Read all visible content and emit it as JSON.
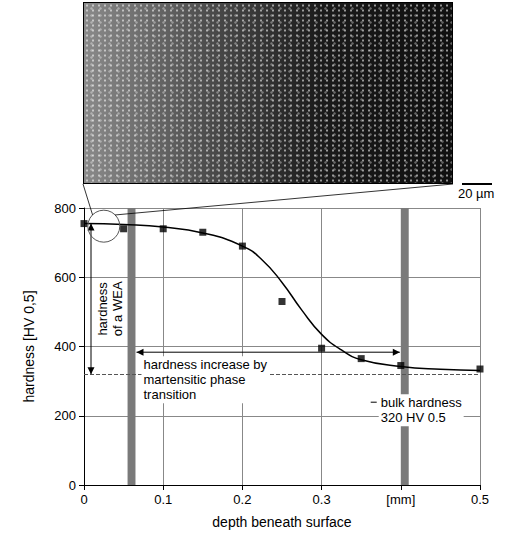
{
  "chart_data": {
    "type": "line",
    "image": {
      "scale_bar": "20 µm"
    },
    "xlabel": "depth beneath surface",
    "ylabel": "hardness [HV 0,5]",
    "xlim": [
      0,
      0.5
    ],
    "xticks": [
      0,
      0.1,
      0.2,
      0.3,
      {
        "value": 0.4,
        "label": "[mm]"
      },
      0.5
    ],
    "ylim": [
      0,
      800
    ],
    "yticks": [
      0,
      200,
      400,
      600,
      800
    ],
    "grid": true,
    "series": [
      {
        "type": "scatter",
        "marker": "square",
        "color": "#000000",
        "x": [
          0,
          0.05,
          0.1,
          0.15,
          0.2,
          0.25,
          0.3,
          0.35,
          0.4,
          0.5
        ],
        "values": [
          755,
          740,
          740,
          730,
          690,
          530,
          395,
          365,
          345,
          335
        ]
      },
      {
        "type": "line",
        "line_style": "solid",
        "color": "#000000",
        "x": [
          0,
          0.05,
          0.1,
          0.15,
          0.2,
          0.225,
          0.25,
          0.275,
          0.3,
          0.325,
          0.35,
          0.4,
          0.45,
          0.5
        ],
        "values": [
          755,
          752,
          745,
          728,
          690,
          650,
          585,
          505,
          435,
          390,
          362,
          342,
          334,
          331
        ]
      }
    ],
    "bands": [
      [
        0.055,
        0.065
      ],
      [
        0.4,
        0.41
      ]
    ],
    "bulk_hardness": 320,
    "annotations": [
      "hardness of a WEA",
      "hardness increase by martensitic phase transition",
      "bulk hardness 320 HV 0.5"
    ]
  }
}
